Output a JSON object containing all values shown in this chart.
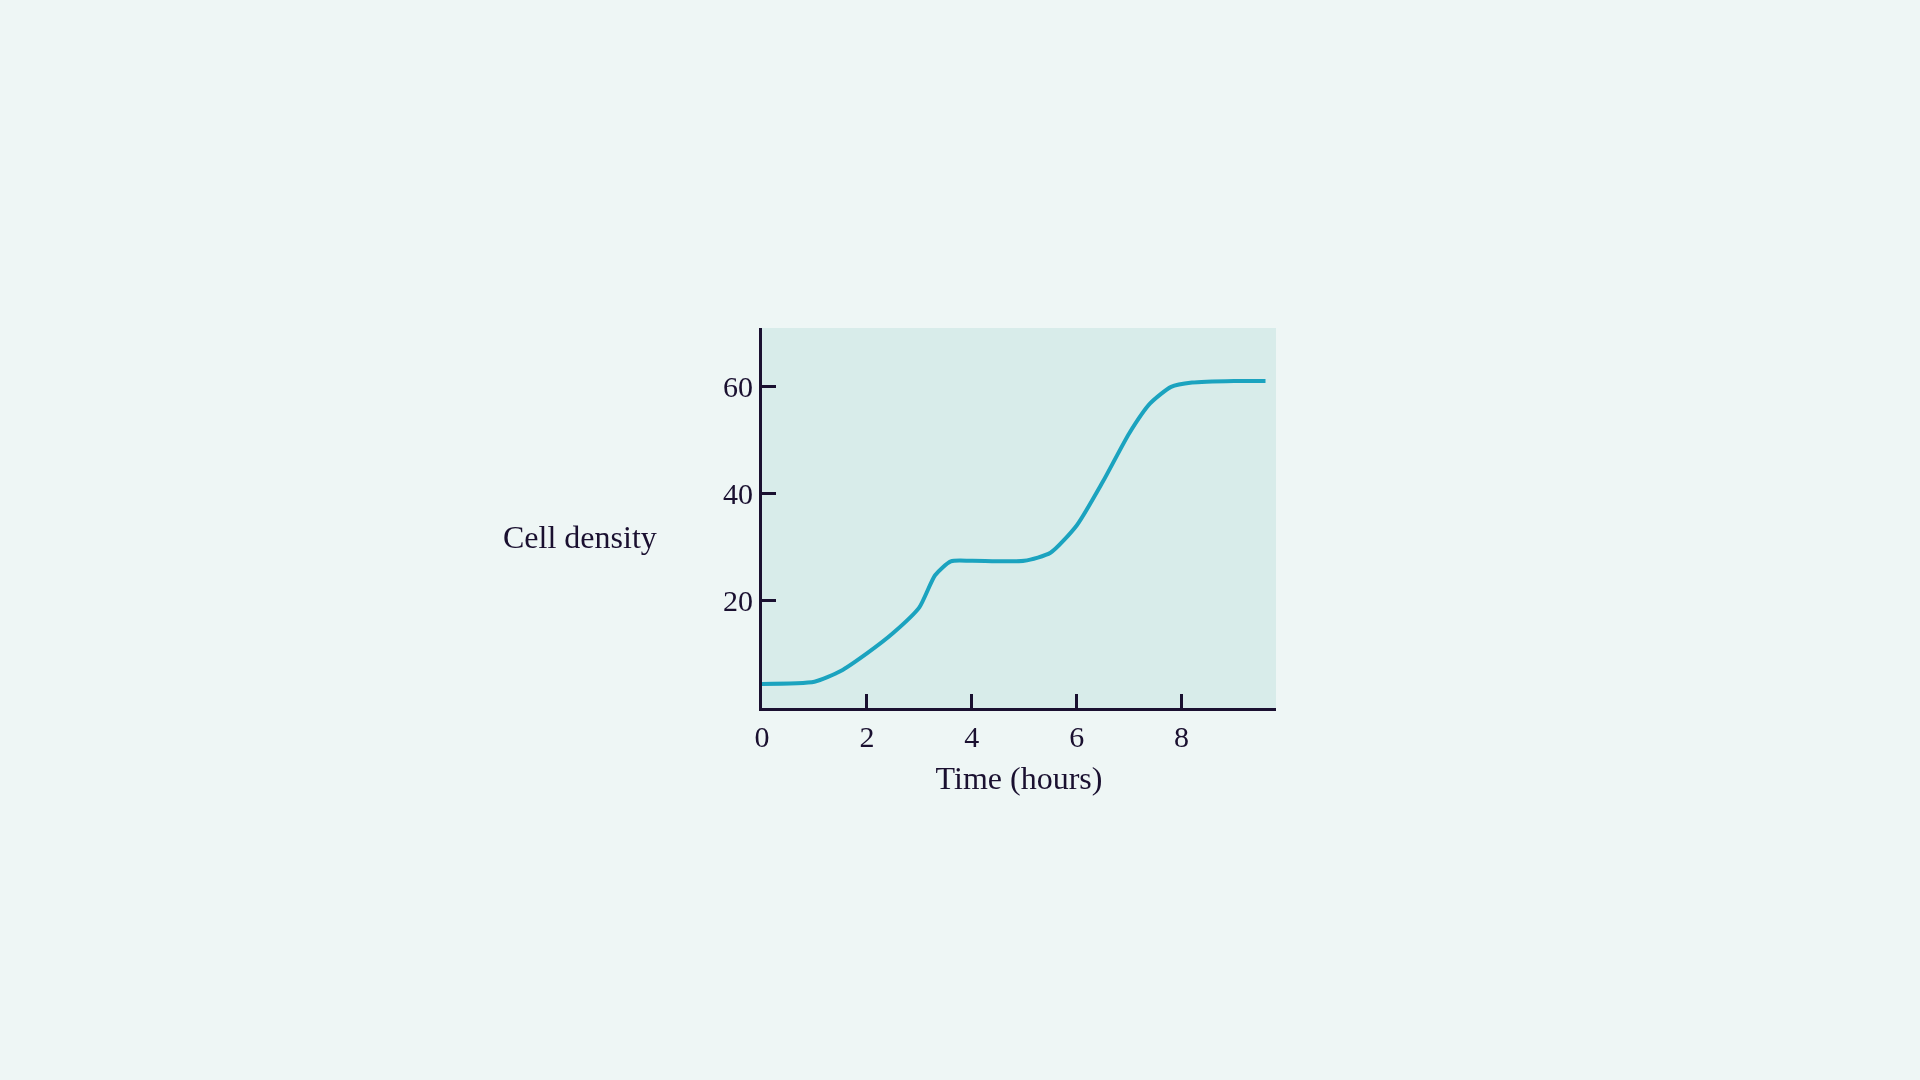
{
  "chart_data": {
    "type": "line",
    "xlabel": "Time (hours)",
    "ylabel": "Cell density",
    "x": [
      0,
      1,
      1.5,
      2,
      2.5,
      3,
      3.3,
      3.6,
      4,
      5,
      5.5,
      6,
      6.5,
      7,
      7.4,
      7.8,
      8.2,
      9,
      9.6
    ],
    "series": [
      {
        "color": "#1ba3bf",
        "values": [
          4.5,
          4.9,
          6.9,
          10.2,
          14,
          18.8,
          24.8,
          27.4,
          27.5,
          27.5,
          29,
          34.1,
          42.3,
          51.3,
          56.9,
          60,
          60.8,
          61.1,
          61.1
        ]
      }
    ],
    "xlim": [
      0,
      9.8
    ],
    "ylim": [
      0,
      71
    ],
    "xticks": [
      0,
      2,
      4,
      6,
      8
    ],
    "yticks": [
      20,
      40,
      60
    ],
    "grid": false,
    "marker": "none",
    "line_style": "solid"
  }
}
